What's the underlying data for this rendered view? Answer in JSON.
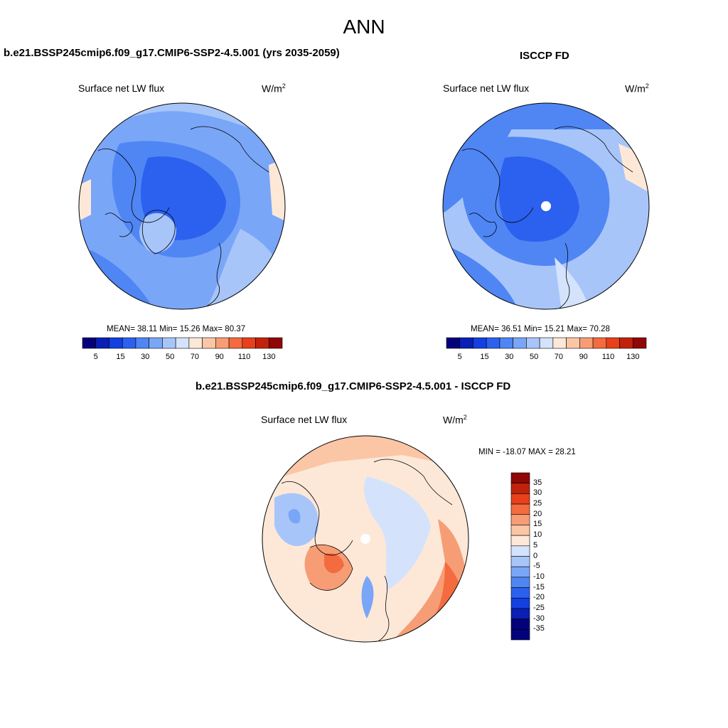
{
  "main_title": "ANN",
  "colors": {
    "levels13": [
      "#04027a",
      "#0a1fb4",
      "#1340e0",
      "#2c61ef",
      "#4f86f4",
      "#7aa6f7",
      "#a8c5fa",
      "#d4e3fb",
      "#fde8d8",
      "#fbc6a6",
      "#f79d75",
      "#f36b3e",
      "#e7401b",
      "#c1220c",
      "#8f0706"
    ],
    "levels_diff": [
      "#04027a",
      "#0a1fb4",
      "#1340e0",
      "#2c61ef",
      "#4f86f4",
      "#7aa6f7",
      "#a8c5fa",
      "#d4e3fb",
      "#fde8d8",
      "#fbc6a6",
      "#f79d75",
      "#f36b3e",
      "#e7401b",
      "#c1220c",
      "#8f0706"
    ]
  },
  "panels": {
    "model": {
      "title": "b.e21.BSSP245cmip6.f09_g17.CMIP6-SSP2-4.5.001 (yrs 2035-2059)",
      "variable": "Surface net LW flux",
      "unit_base": "W/m",
      "unit_exp": "2",
      "stats": "MEAN=  38.11   Min=  15.26   Max=  80.37",
      "colorbar_ticks": [
        "5",
        "15",
        "30",
        "50",
        "70",
        "90",
        "110",
        "130"
      ]
    },
    "obs": {
      "title": "ISCCP FD",
      "variable": "Surface net LW flux",
      "unit_base": "W/m",
      "unit_exp": "2",
      "stats": "MEAN=  36.51   Min=  15.21   Max=  70.28",
      "colorbar_ticks": [
        "5",
        "15",
        "30",
        "50",
        "70",
        "90",
        "110",
        "130"
      ]
    },
    "diff": {
      "title": "b.e21.BSSP245cmip6.f09_g17.CMIP6-SSP2-4.5.001 - ISCCP FD",
      "variable": "Surface net LW flux",
      "unit_base": "W/m",
      "unit_exp": "2",
      "stats": "MIN = -18.07 MAX =  28.21",
      "colorbar_ticks": [
        "35",
        "30",
        "25",
        "20",
        "15",
        "10",
        "5",
        "0",
        "-5",
        "-10",
        "-15",
        "-20",
        "-25",
        "-30",
        "-35"
      ]
    }
  }
}
